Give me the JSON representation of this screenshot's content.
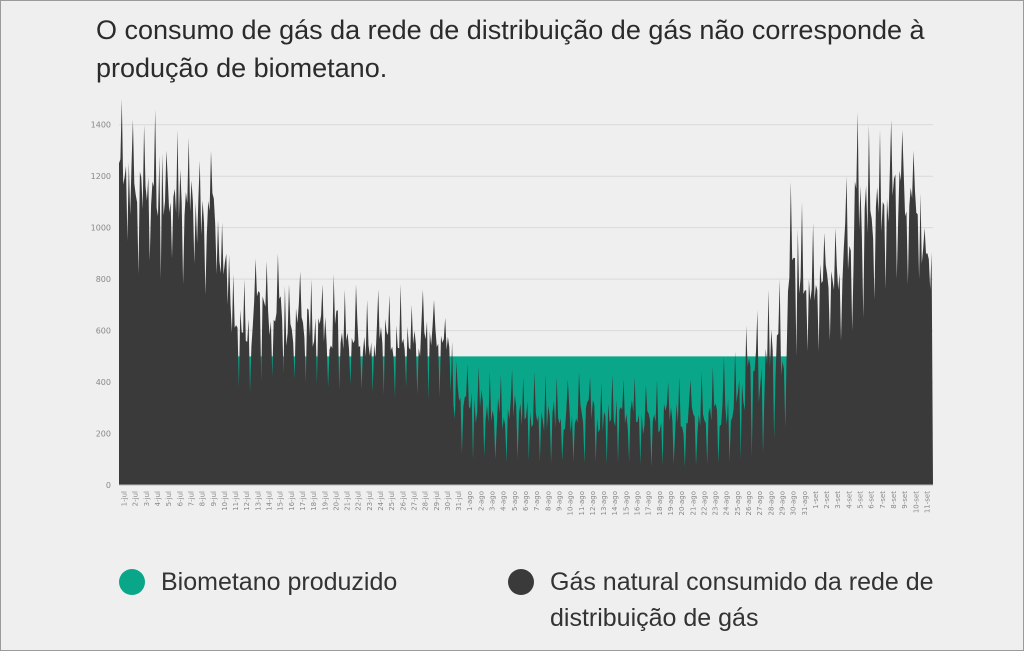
{
  "title": "O consumo de gás da rede de distribuição de gás não corresponde à produção de biometano.",
  "legend": [
    {
      "label": "Biometano produzido",
      "color": "#0aa68a",
      "icon": "teal-circle-icon"
    },
    {
      "label": "Gás natural consumido da rede de distribuição de gás",
      "color": "#3a3a3a",
      "icon": "dark-circle-icon"
    }
  ],
  "colors": {
    "background": "#efefef",
    "biomethane": "#0aa68a",
    "gas": "#3a3a3a",
    "grid": "#d9d9d9"
  },
  "chart_data": {
    "type": "area",
    "title": "",
    "xlabel": "",
    "ylabel": "",
    "ylim": [
      0,
      1500
    ],
    "yticks": [
      0,
      200,
      400,
      600,
      800,
      1000,
      1200,
      1400
    ],
    "grid": true,
    "legend_position": "bottom",
    "categories": [
      "1-jul",
      "2-jul",
      "3-jul",
      "4-jul",
      "5-jul",
      "6-jul",
      "7-jul",
      "8-jul",
      "9-jul",
      "10-jul",
      "11-jul",
      "12-jul",
      "13-jul",
      "14-jul",
      "15-jul",
      "16-jul",
      "17-jul",
      "18-jul",
      "19-jul",
      "20-jul",
      "21-jul",
      "22-jul",
      "23-jul",
      "24-jul",
      "25-jul",
      "26-jul",
      "27-jul",
      "28-jul",
      "29-jul",
      "30-jul",
      "31-jul",
      "1-ago",
      "2-ago",
      "3-ago",
      "4-ago",
      "5-ago",
      "6-ago",
      "7-ago",
      "8-ago",
      "9-ago",
      "10-ago",
      "11-ago",
      "12-ago",
      "13-ago",
      "14-ago",
      "15-ago",
      "16-ago",
      "17-ago",
      "18-ago",
      "19-ago",
      "20-ago",
      "21-ago",
      "22-ago",
      "23-ago",
      "24-ago",
      "25-ago",
      "26-ago",
      "27-ago",
      "28-ago",
      "29-ago",
      "30-ago",
      "31-ago",
      "1-set",
      "2-set",
      "3-set",
      "4-set",
      "5-set",
      "6-set",
      "7-set",
      "8-set",
      "9-set",
      "10-set",
      "11-set"
    ],
    "series": [
      {
        "name": "Biometano produzido",
        "color": "#0aa68a",
        "values": [
          0,
          0,
          0,
          0,
          0,
          0,
          0,
          0,
          0,
          0,
          500,
          500,
          500,
          500,
          500,
          500,
          500,
          500,
          500,
          500,
          500,
          500,
          500,
          500,
          500,
          500,
          500,
          500,
          500,
          500,
          500,
          500,
          500,
          500,
          500,
          500,
          500,
          500,
          500,
          500,
          500,
          500,
          500,
          500,
          500,
          500,
          500,
          500,
          500,
          500,
          500,
          500,
          500,
          500,
          500,
          500,
          500,
          500,
          500,
          500,
          500,
          500,
          500,
          0,
          0,
          0,
          0,
          0,
          0,
          0,
          0,
          0,
          0
        ]
      },
      {
        "name": "Gás natural consumido da rede de distribuição de gás",
        "color": "#3a3a3a",
        "daily_min": [
          950,
          820,
          870,
          800,
          880,
          780,
          860,
          740,
          820,
          700,
          380,
          360,
          400,
          420,
          430,
          410,
          400,
          390,
          380,
          370,
          390,
          370,
          360,
          350,
          340,
          380,
          350,
          330,
          340,
          360,
          120,
          100,
          110,
          100,
          90,
          100,
          95,
          90,
          85,
          95,
          90,
          85,
          90,
          80,
          85,
          90,
          80,
          70,
          75,
          80,
          70,
          75,
          80,
          85,
          90,
          100,
          110,
          120,
          180,
          220,
          500,
          520,
          520,
          560,
          560,
          600,
          650,
          720,
          760,
          800,
          780,
          800,
          760
        ],
        "daily_max": [
          1500,
          1420,
          1400,
          1460,
          1300,
          1380,
          1350,
          1260,
          1300,
          1020,
          820,
          800,
          880,
          870,
          900,
          780,
          830,
          800,
          780,
          820,
          760,
          780,
          720,
          760,
          740,
          780,
          700,
          760,
          720,
          650,
          480,
          470,
          460,
          440,
          430,
          450,
          420,
          440,
          430,
          420,
          410,
          440,
          420,
          400,
          430,
          410,
          420,
          390,
          410,
          400,
          420,
          410,
          440,
          460,
          500,
          520,
          620,
          680,
          760,
          800,
          1180,
          1100,
          1020,
          980,
          1000,
          1200,
          1450,
          1400,
          1380,
          1420,
          1380,
          1300,
          1000
        ]
      }
    ]
  }
}
